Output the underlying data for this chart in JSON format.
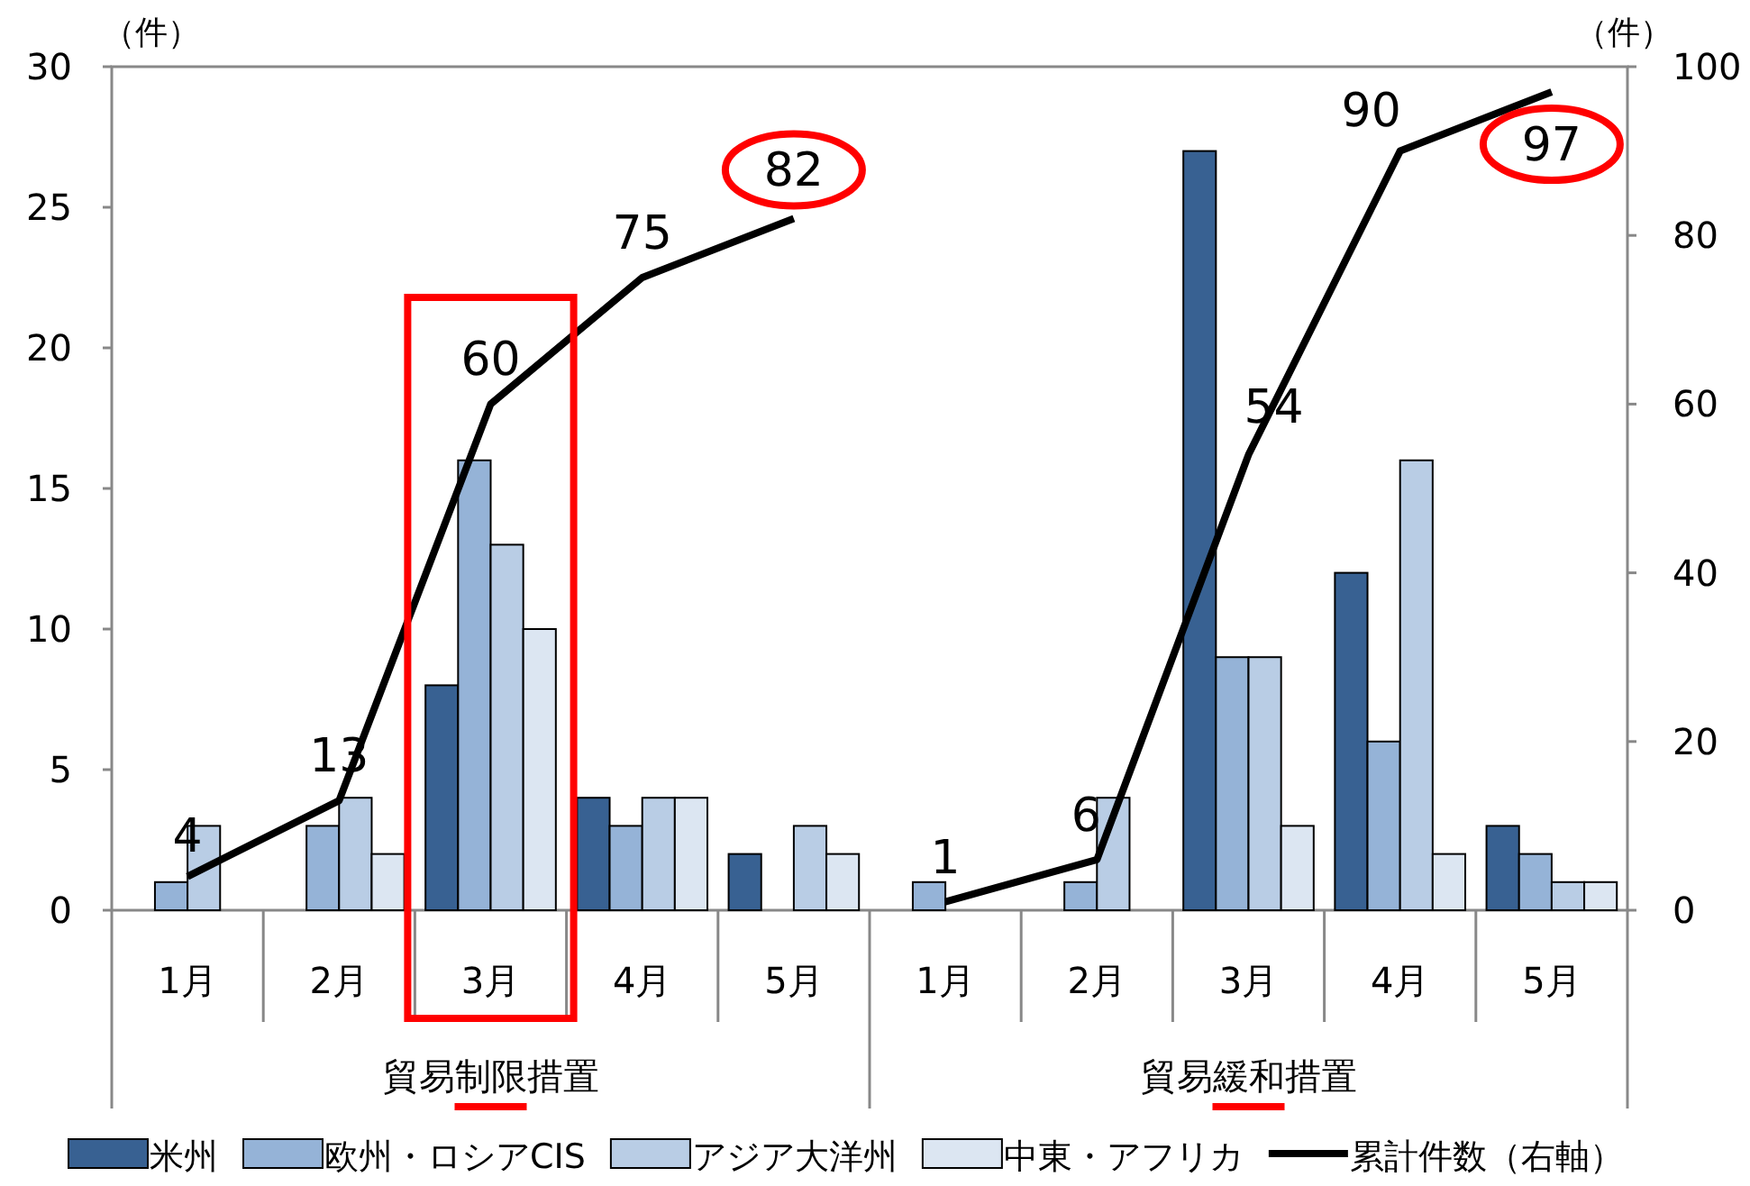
{
  "chart_data": {
    "type": "bar",
    "categories": [
      "1月",
      "2月",
      "3月",
      "4月",
      "5月",
      "1月",
      "2月",
      "3月",
      "4月",
      "5月"
    ],
    "series": [
      {
        "name": "米州",
        "color": "#386192",
        "values": [
          0,
          0,
          8,
          4,
          2,
          0,
          0,
          27,
          12,
          3
        ]
      },
      {
        "name": "欧州・ロシアCIS",
        "color": "#95b3d7",
        "values": [
          1,
          3,
          16,
          3,
          0,
          1,
          1,
          9,
          6,
          2
        ]
      },
      {
        "name": "アジア大洋州",
        "color": "#b9cde5",
        "values": [
          3,
          4,
          13,
          4,
          3,
          0,
          4,
          9,
          16,
          1
        ]
      },
      {
        "name": "中東・アフリカ",
        "color": "#dce6f2",
        "values": [
          0,
          2,
          10,
          4,
          2,
          0,
          0,
          3,
          2,
          1
        ]
      },
      {
        "name": "累計件数（右軸）",
        "type": "line",
        "axis": "y2",
        "color": "#000000",
        "values": [
          4,
          13,
          60,
          75,
          82,
          null,
          null,
          null,
          null,
          null
        ],
        "value_labels": [
          "4",
          "13",
          "60",
          "75",
          "82",
          null,
          null,
          null,
          null,
          null
        ]
      },
      {
        "type": "line",
        "axis": "y2",
        "color": "#000000",
        "values": [
          null,
          null,
          null,
          null,
          null,
          1,
          6,
          54,
          90,
          97
        ],
        "value_labels": [
          null,
          null,
          null,
          null,
          null,
          "1",
          "6",
          "54",
          "90",
          "97"
        ]
      }
    ],
    "ylabel": "（件）",
    "y2label": "（件）",
    "ylim": [
      0,
      30
    ],
    "yticks": [
      0,
      5,
      10,
      15,
      20,
      25,
      30
    ],
    "y2lim": [
      0,
      100
    ],
    "y2ticks": [
      0,
      20,
      40,
      60,
      80,
      100
    ],
    "annotations": [
      "貿易制限措置",
      "貿易緩和措置"
    ],
    "legend": "bottom",
    "grid": false
  }
}
